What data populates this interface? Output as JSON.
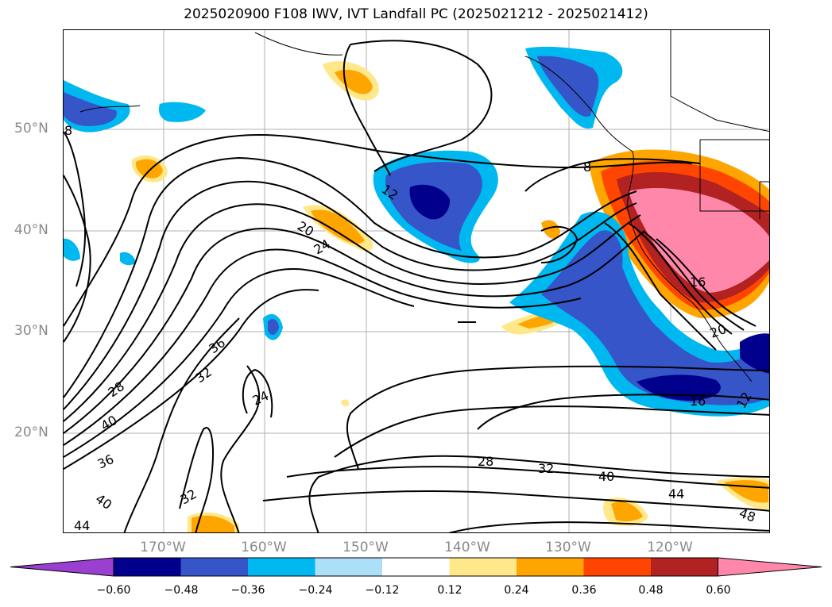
{
  "title": "2025020900 F108 IWV, IVT Landfall PC (2025021212 - 2025021412)",
  "axes": {
    "lat_labels": [
      "50°N",
      "40°N",
      "30°N",
      "20°N"
    ],
    "lon_labels": [
      "170°W",
      "160°W",
      "150°W",
      "140°W",
      "130°W",
      "120°W"
    ]
  },
  "contour_labels": [
    "8",
    "12",
    "20",
    "24",
    "36",
    "32",
    "28",
    "40",
    "24",
    "36",
    "40",
    "44",
    "32",
    "8",
    "28",
    "32",
    "40",
    "44",
    "48",
    "16",
    "16",
    "20",
    "12"
  ],
  "colorbar": {
    "ticks": [
      "−0.60",
      "−0.48",
      "−0.36",
      "−0.24",
      "−0.12",
      "0.12",
      "0.24",
      "0.36",
      "0.48",
      "0.60"
    ],
    "colors": [
      "#9b3fd0",
      "#00008c",
      "#3555c8",
      "#00b8f0",
      "#ace0f8",
      "#ffffff",
      "#ffe88a",
      "#ffa500",
      "#ff4500",
      "#b22222",
      "#ff88aa"
    ]
  },
  "colors": {
    "frame": "#000000",
    "grid": "#b0b0b0",
    "contour": "#000000"
  }
}
